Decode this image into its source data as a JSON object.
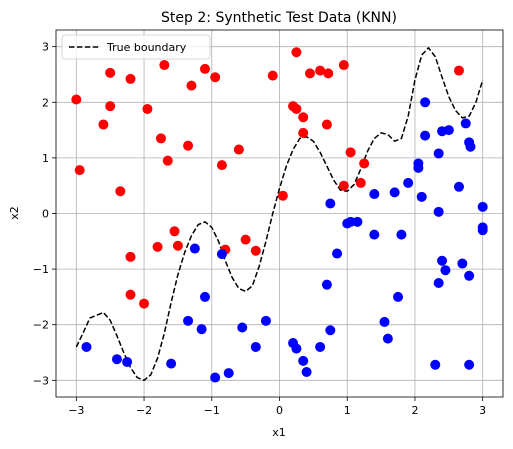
{
  "chart_data": {
    "type": "scatter",
    "title": "Step 2: Synthetic Test Data (KNN)",
    "xlabel": "x1",
    "ylabel": "x2",
    "xlim": [
      -3.3,
      3.3
    ],
    "ylim": [
      -3.3,
      3.3
    ],
    "xticks": [
      -3,
      -2,
      -1,
      0,
      1,
      2,
      3
    ],
    "yticks": [
      -3,
      -2,
      -1,
      0,
      1,
      2,
      3
    ],
    "xtick_labels": [
      "−3",
      "−2",
      "−1",
      "0",
      "1",
      "2",
      "3"
    ],
    "ytick_labels": [
      "−3",
      "−2",
      "−1",
      "0",
      "1",
      "2",
      "3"
    ],
    "grid": true,
    "legend": {
      "placement": "top-left",
      "entries": [
        "True boundary"
      ]
    },
    "boundary": {
      "name": "True boundary",
      "style": "dashed",
      "color": "#000000",
      "x": [
        -3.0,
        -2.9,
        -2.8,
        -2.6,
        -2.5,
        -2.4,
        -2.3,
        -2.2,
        -2.1,
        -2.0,
        -1.9,
        -1.8,
        -1.7,
        -1.6,
        -1.5,
        -1.4,
        -1.3,
        -1.2,
        -1.1,
        -1.0,
        -0.9,
        -0.8,
        -0.7,
        -0.6,
        -0.5,
        -0.4,
        -0.3,
        -0.2,
        -0.1,
        0.0,
        0.1,
        0.2,
        0.3,
        0.4,
        0.5,
        0.6,
        0.7,
        0.8,
        0.9,
        1.0,
        1.1,
        1.2,
        1.3,
        1.4,
        1.5,
        1.6,
        1.7,
        1.8,
        1.9,
        2.0,
        2.1,
        2.2,
        2.3,
        2.4,
        2.5,
        2.6,
        2.7,
        2.8,
        2.9,
        3.0
      ],
      "y": [
        -2.4,
        -2.15,
        -1.88,
        -1.78,
        -1.92,
        -2.2,
        -2.5,
        -2.77,
        -2.95,
        -3.0,
        -2.9,
        -2.6,
        -2.15,
        -1.6,
        -1.1,
        -0.7,
        -0.4,
        -0.2,
        -0.15,
        -0.25,
        -0.5,
        -0.85,
        -1.15,
        -1.35,
        -1.4,
        -1.3,
        -0.95,
        -0.5,
        0.0,
        0.45,
        0.85,
        1.15,
        1.35,
        1.38,
        1.3,
        1.1,
        0.85,
        0.6,
        0.42,
        0.4,
        0.52,
        0.8,
        1.12,
        1.35,
        1.45,
        1.42,
        1.3,
        1.35,
        1.75,
        2.4,
        2.85,
        2.98,
        2.82,
        2.45,
        2.1,
        1.85,
        1.72,
        1.75,
        2.0,
        2.4
      ]
    },
    "series": [
      {
        "label_color": "red",
        "color": "#ff0000",
        "points": [
          [
            -3.0,
            2.05
          ],
          [
            -2.95,
            0.78
          ],
          [
            -2.6,
            1.6
          ],
          [
            -2.5,
            2.53
          ],
          [
            -2.5,
            1.93
          ],
          [
            -2.35,
            0.4
          ],
          [
            -2.2,
            2.42
          ],
          [
            -2.2,
            -0.78
          ],
          [
            -2.2,
            -1.46
          ],
          [
            -2.0,
            -1.62
          ],
          [
            -1.95,
            1.88
          ],
          [
            -1.75,
            1.35
          ],
          [
            -1.8,
            -0.6
          ],
          [
            -1.7,
            2.67
          ],
          [
            -1.65,
            0.95
          ],
          [
            -1.55,
            -0.32
          ],
          [
            -1.5,
            -0.58
          ],
          [
            -1.35,
            1.22
          ],
          [
            -1.3,
            2.3
          ],
          [
            -1.1,
            2.6
          ],
          [
            -0.95,
            2.45
          ],
          [
            -0.85,
            0.87
          ],
          [
            -0.8,
            -0.65
          ],
          [
            -0.6,
            1.15
          ],
          [
            -0.5,
            -0.47
          ],
          [
            -0.35,
            -0.67
          ],
          [
            -0.1,
            2.48
          ],
          [
            0.05,
            0.32
          ],
          [
            0.2,
            1.93
          ],
          [
            0.25,
            1.88
          ],
          [
            0.25,
            2.9
          ],
          [
            0.35,
            1.73
          ],
          [
            0.35,
            1.45
          ],
          [
            0.45,
            2.52
          ],
          [
            0.6,
            2.57
          ],
          [
            0.7,
            1.6
          ],
          [
            0.72,
            2.52
          ],
          [
            0.95,
            2.67
          ],
          [
            0.95,
            0.5
          ],
          [
            1.05,
            1.1
          ],
          [
            1.2,
            0.55
          ],
          [
            1.25,
            0.9
          ],
          [
            2.65,
            2.57
          ]
        ]
      },
      {
        "label_color": "blue",
        "color": "#0000ff",
        "points": [
          [
            -2.85,
            -2.4
          ],
          [
            -2.4,
            -2.62
          ],
          [
            -2.25,
            -2.67
          ],
          [
            -1.6,
            -2.7
          ],
          [
            -1.35,
            -1.93
          ],
          [
            -1.25,
            -0.63
          ],
          [
            -1.15,
            -2.08
          ],
          [
            -1.1,
            -1.5
          ],
          [
            -0.95,
            -2.95
          ],
          [
            -0.85,
            -0.73
          ],
          [
            -0.75,
            -2.87
          ],
          [
            -0.55,
            -2.05
          ],
          [
            -0.35,
            -2.4
          ],
          [
            -0.2,
            -1.93
          ],
          [
            0.2,
            -2.33
          ],
          [
            0.25,
            -2.43
          ],
          [
            0.35,
            -2.65
          ],
          [
            0.4,
            -2.85
          ],
          [
            0.6,
            -2.4
          ],
          [
            0.7,
            -1.28
          ],
          [
            0.75,
            0.18
          ],
          [
            0.75,
            -2.1
          ],
          [
            0.85,
            -0.72
          ],
          [
            1.0,
            -0.18
          ],
          [
            1.05,
            -0.15
          ],
          [
            1.15,
            -0.15
          ],
          [
            1.4,
            -0.38
          ],
          [
            1.4,
            0.35
          ],
          [
            1.55,
            -1.95
          ],
          [
            1.6,
            -2.25
          ],
          [
            1.7,
            0.38
          ],
          [
            1.75,
            -1.5
          ],
          [
            1.8,
            -0.38
          ],
          [
            1.9,
            0.55
          ],
          [
            2.05,
            0.9
          ],
          [
            2.05,
            0.82
          ],
          [
            2.1,
            0.3
          ],
          [
            2.15,
            1.4
          ],
          [
            2.15,
            2.0
          ],
          [
            2.3,
            -2.72
          ],
          [
            2.35,
            1.08
          ],
          [
            2.35,
            0.03
          ],
          [
            2.35,
            -1.25
          ],
          [
            2.4,
            -0.85
          ],
          [
            2.4,
            1.48
          ],
          [
            2.45,
            -1.02
          ],
          [
            2.5,
            1.5
          ],
          [
            2.65,
            0.48
          ],
          [
            2.7,
            -0.9
          ],
          [
            2.75,
            1.62
          ],
          [
            2.8,
            -1.12
          ],
          [
            2.8,
            -2.72
          ],
          [
            2.8,
            1.28
          ],
          [
            2.82,
            1.2
          ],
          [
            3.0,
            0.12
          ],
          [
            3.0,
            -0.25
          ],
          [
            3.0,
            -0.3
          ]
        ]
      }
    ]
  }
}
